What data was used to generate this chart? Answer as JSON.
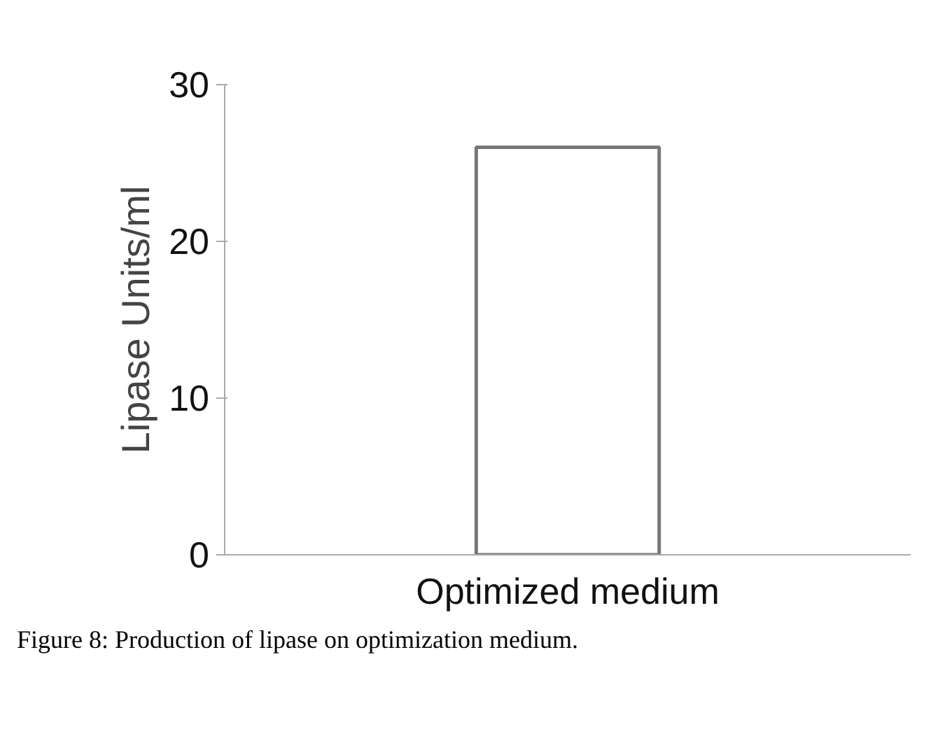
{
  "chart_data": {
    "type": "bar",
    "ylabel": "Lipase Units/ml",
    "categories": [
      "Optimized medium"
    ],
    "values": [
      26
    ],
    "color": "#ffffff",
    "ylim": [
      0,
      30
    ],
    "yticks": [
      0,
      10,
      20,
      30
    ],
    "grid": false,
    "annotations": [
      "Figure 8: Production of lipase on optimization medium."
    ]
  }
}
